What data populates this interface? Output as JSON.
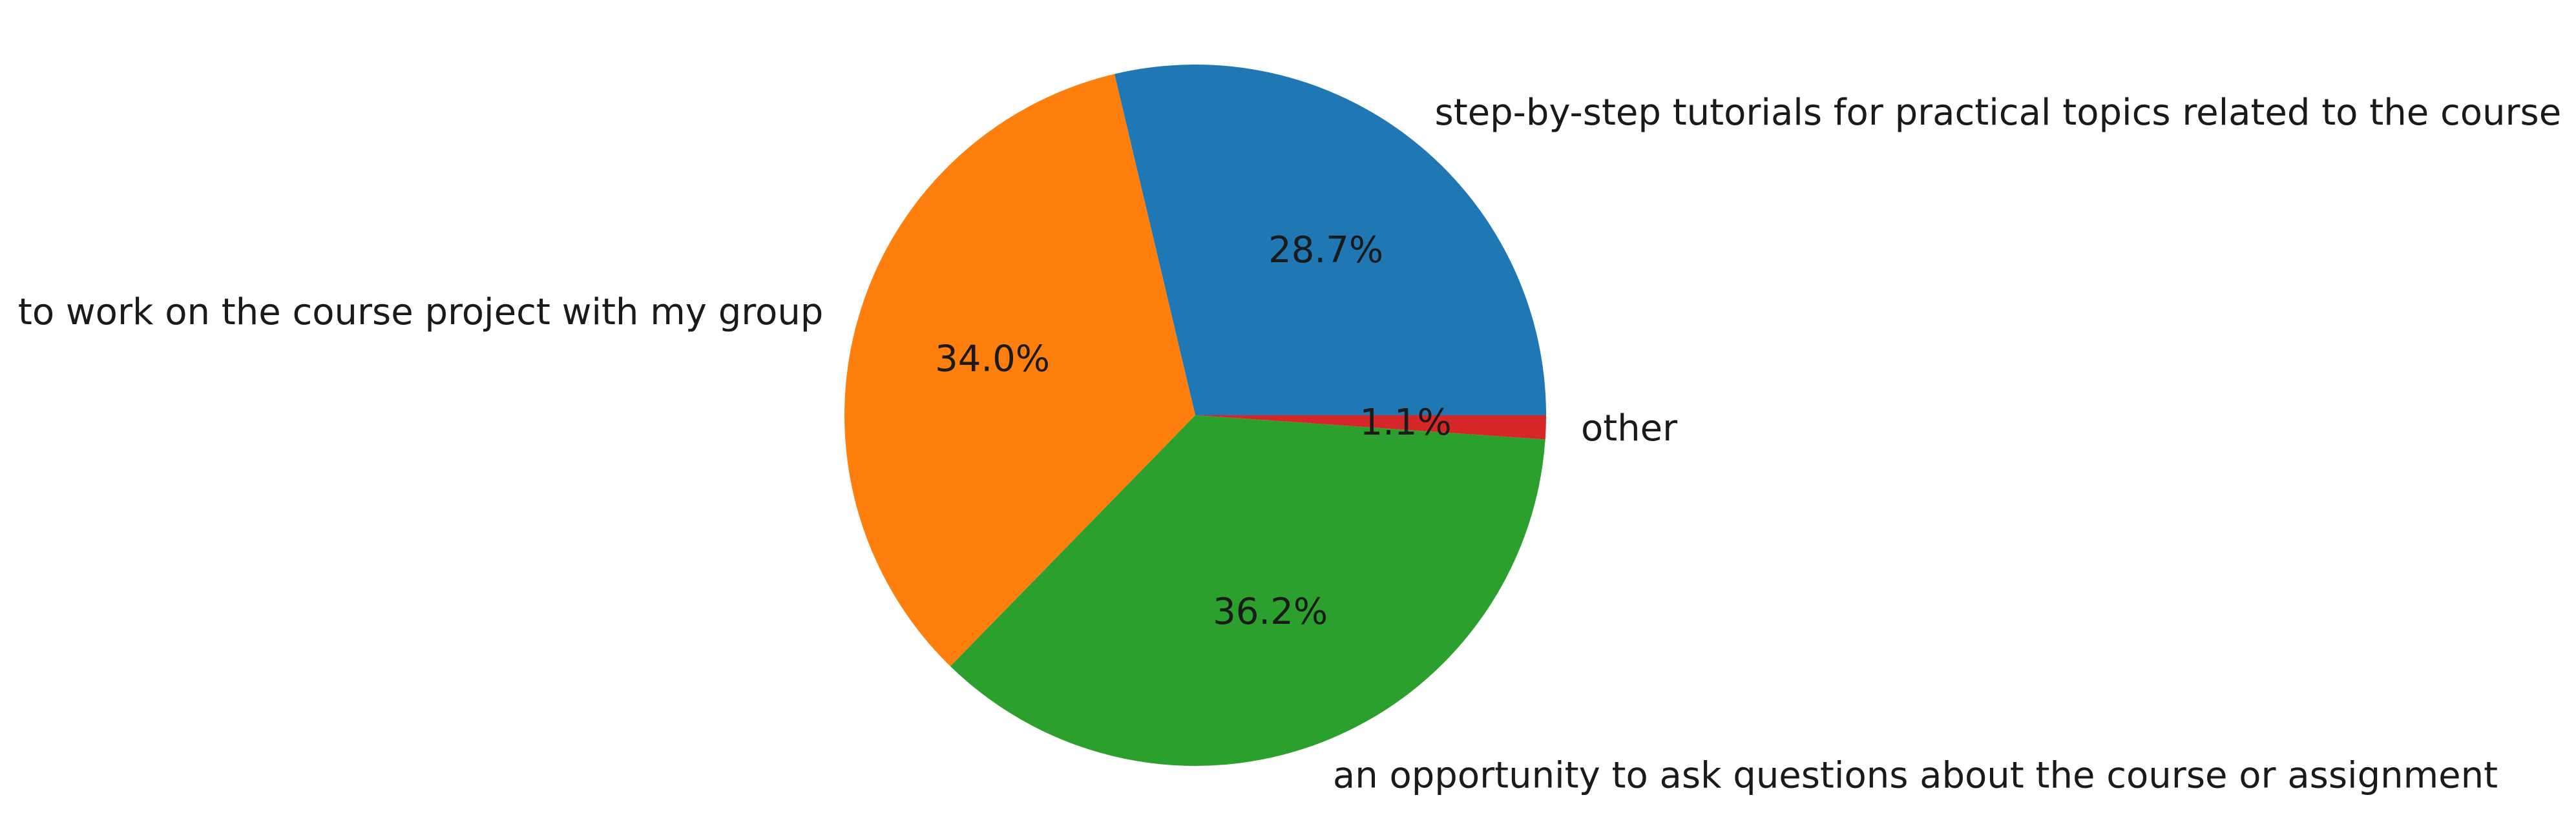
{
  "chart_data": {
    "type": "pie",
    "title": "",
    "slices": [
      {
        "label": "step-by-step tutorials for practical topics related to the course",
        "value": 28.7,
        "pct_label": "28.7%",
        "color": "#1f77b4"
      },
      {
        "label": "to work on the course project with my group",
        "value": 34.0,
        "pct_label": "34.0%",
        "color": "#ff7f0e"
      },
      {
        "label": "an opportunity to ask questions about the course or assignment",
        "value": 36.2,
        "pct_label": "36.2%",
        "color": "#2ca02c"
      },
      {
        "label": "other",
        "value": 1.1,
        "pct_label": "1.1%",
        "color": "#d62728"
      }
    ],
    "start_angle_deg": 0,
    "direction": "counterclockwise",
    "legend": "none"
  }
}
